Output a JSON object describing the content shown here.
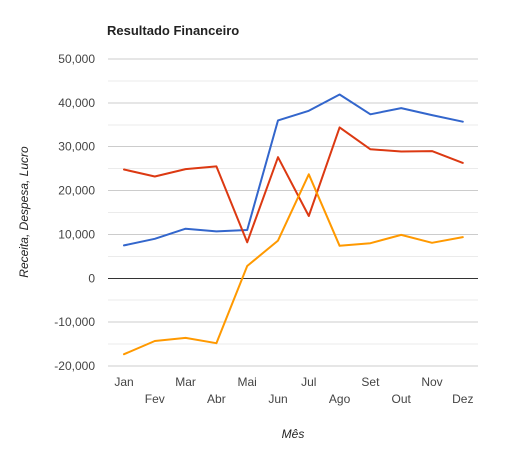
{
  "chart_data": {
    "type": "line",
    "title": "Resultado Financeiro",
    "xlabel": "Mês",
    "ylabel": "Receita, Despesa, Lucro",
    "categories": [
      "Jan",
      "Fev",
      "Mar",
      "Abr",
      "Mai",
      "Jun",
      "Jul",
      "Ago",
      "Set",
      "Out",
      "Nov",
      "Dez"
    ],
    "ylim": [
      -20000,
      50000
    ],
    "yticks": [
      -20000,
      -10000,
      0,
      10000,
      20000,
      30000,
      40000,
      50000
    ],
    "ytick_labels": [
      "-20,000",
      "-10,000",
      "0",
      "10,000",
      "20,000",
      "30,000",
      "40,000",
      "50,000"
    ],
    "grid": true,
    "legend": "none",
    "series": [
      {
        "color": "#3366cc",
        "values": [
          7500,
          9000,
          11300,
          10700,
          11000,
          36000,
          38200,
          41900,
          37400,
          38800,
          37200,
          35700
        ]
      },
      {
        "color": "#dc3912",
        "values": [
          24800,
          23200,
          24900,
          25500,
          8200,
          27600,
          14200,
          34400,
          29400,
          28900,
          29000,
          26300
        ]
      },
      {
        "color": "#ff9900",
        "values": [
          -17300,
          -14300,
          -13600,
          -14800,
          2800,
          8600,
          23700,
          7400,
          8000,
          9900,
          8100,
          9400
        ]
      }
    ]
  }
}
